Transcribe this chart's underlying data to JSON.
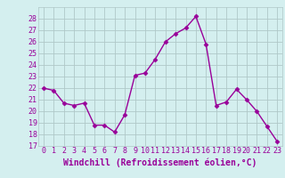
{
  "x": [
    0,
    1,
    2,
    3,
    4,
    5,
    6,
    7,
    8,
    9,
    10,
    11,
    12,
    13,
    14,
    15,
    16,
    17,
    18,
    19,
    20,
    21,
    22,
    23
  ],
  "y": [
    22,
    21.8,
    20.7,
    20.5,
    20.7,
    18.8,
    18.8,
    18.2,
    19.7,
    23.1,
    23.3,
    24.5,
    26.0,
    26.7,
    27.2,
    28.2,
    25.8,
    20.5,
    20.8,
    21.9,
    21.0,
    20.0,
    18.7,
    17.4
  ],
  "line_color": "#990099",
  "marker": "D",
  "markersize": 2.5,
  "linewidth": 1.0,
  "xlabel": "Windchill (Refroidissement éolien,°C)",
  "xlabel_fontsize": 7,
  "ylim": [
    17,
    29
  ],
  "yticks": [
    17,
    18,
    19,
    20,
    21,
    22,
    23,
    24,
    25,
    26,
    27,
    28
  ],
  "xticks": [
    0,
    1,
    2,
    3,
    4,
    5,
    6,
    7,
    8,
    9,
    10,
    11,
    12,
    13,
    14,
    15,
    16,
    17,
    18,
    19,
    20,
    21,
    22,
    23
  ],
  "background_color": "#d4efef",
  "grid_color": "#b0c8c8",
  "tick_fontsize": 6,
  "label_color": "#990099"
}
